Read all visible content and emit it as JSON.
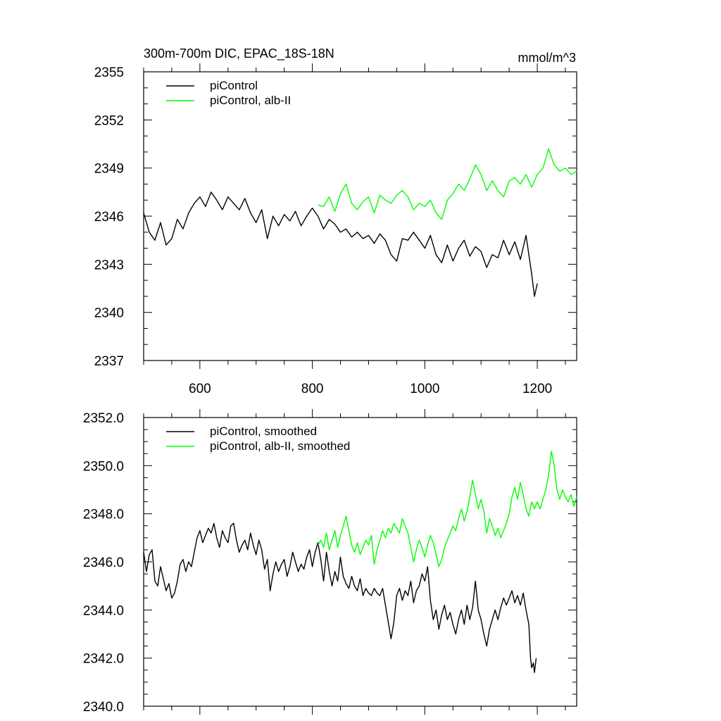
{
  "chart_data": [
    {
      "type": "line",
      "title": "300m-700m DIC, EPAC_18S-18N",
      "units": "mmol/m^3",
      "xlim": [
        500,
        1270
      ],
      "ylim": [
        2337,
        2355
      ],
      "x_ticks": [
        600,
        800,
        1000,
        1200
      ],
      "x_tick_labels": [
        "600",
        "800",
        "1000",
        "1200"
      ],
      "y_ticks": [
        2337,
        2340,
        2343,
        2346,
        2349,
        2352,
        2355
      ],
      "y_tick_labels": [
        "2337",
        "2340",
        "2343",
        "2346",
        "2349",
        "2352",
        "2355"
      ],
      "legend": "top-left",
      "grid": false,
      "series": [
        {
          "name": "piControl",
          "color": "#000000",
          "x": [
            500,
            510,
            520,
            530,
            540,
            550,
            560,
            570,
            580,
            590,
            600,
            610,
            620,
            630,
            640,
            650,
            660,
            670,
            680,
            690,
            700,
            710,
            720,
            730,
            740,
            750,
            760,
            770,
            780,
            790,
            800,
            810,
            820,
            830,
            840,
            850,
            860,
            870,
            880,
            890,
            900,
            910,
            920,
            930,
            940,
            950,
            960,
            970,
            980,
            990,
            1000,
            1010,
            1020,
            1030,
            1040,
            1050,
            1060,
            1070,
            1080,
            1090,
            1100,
            1110,
            1120,
            1130,
            1140,
            1150,
            1160,
            1170,
            1180,
            1190,
            1195,
            1200
          ],
          "y": [
            2346.2,
            2345.0,
            2344.5,
            2345.6,
            2344.2,
            2344.6,
            2345.8,
            2345.2,
            2346.2,
            2346.8,
            2347.2,
            2346.6,
            2347.5,
            2347.0,
            2346.4,
            2347.2,
            2346.8,
            2346.4,
            2347.1,
            2346.2,
            2345.6,
            2346.4,
            2344.6,
            2346.0,
            2345.4,
            2346.1,
            2345.7,
            2346.3,
            2345.4,
            2346.0,
            2346.5,
            2346.0,
            2345.2,
            2345.8,
            2345.5,
            2345.0,
            2345.2,
            2344.7,
            2345.0,
            2344.6,
            2344.8,
            2344.3,
            2344.9,
            2344.5,
            2343.6,
            2343.2,
            2344.6,
            2344.5,
            2345.0,
            2344.5,
            2344.0,
            2344.8,
            2343.6,
            2343.1,
            2344.2,
            2343.2,
            2344.0,
            2344.5,
            2343.5,
            2344.1,
            2343.8,
            2342.8,
            2343.6,
            2343.4,
            2344.5,
            2343.6,
            2344.4,
            2343.3,
            2344.8,
            2342.4,
            2341.0,
            2341.8
          ]
        },
        {
          "name": "piControl, alb-II",
          "color": "#00ff00",
          "x": [
            810,
            820,
            830,
            840,
            850,
            860,
            870,
            880,
            890,
            900,
            910,
            920,
            930,
            940,
            950,
            960,
            970,
            980,
            990,
            1000,
            1010,
            1020,
            1030,
            1040,
            1050,
            1060,
            1070,
            1080,
            1090,
            1100,
            1110,
            1120,
            1130,
            1140,
            1150,
            1160,
            1170,
            1180,
            1190,
            1200,
            1210,
            1220,
            1230,
            1240,
            1250,
            1260,
            1270
          ],
          "y": [
            2346.7,
            2346.6,
            2347.2,
            2346.3,
            2347.4,
            2348.0,
            2346.8,
            2346.4,
            2346.9,
            2347.2,
            2346.2,
            2347.3,
            2347.0,
            2346.8,
            2347.3,
            2347.6,
            2347.2,
            2346.4,
            2346.8,
            2346.6,
            2347.0,
            2346.2,
            2345.8,
            2347.0,
            2347.4,
            2348.0,
            2347.6,
            2348.3,
            2349.2,
            2348.6,
            2347.6,
            2348.2,
            2347.6,
            2347.2,
            2348.2,
            2348.4,
            2348.0,
            2348.6,
            2347.8,
            2348.6,
            2349.0,
            2350.2,
            2349.2,
            2348.8,
            2349.0,
            2348.6,
            2348.8
          ]
        }
      ]
    },
    {
      "type": "line",
      "xlim": [
        500,
        1270
      ],
      "ylim": [
        2340,
        2352
      ],
      "x_ticks": [
        600,
        800,
        1000,
        1200
      ],
      "y_ticks": [
        2340,
        2342,
        2344,
        2346,
        2348,
        2350,
        2352
      ],
      "y_tick_labels": [
        "2340.0",
        "2342.0",
        "2344.0",
        "2346.0",
        "2348.0",
        "2350.0",
        "2352.0"
      ],
      "legend": "top-left",
      "grid": false,
      "series": [
        {
          "name": "piControl, smoothed",
          "color": "#000000",
          "x": [
            500,
            505,
            510,
            515,
            520,
            525,
            530,
            535,
            540,
            545,
            550,
            555,
            560,
            565,
            570,
            575,
            580,
            585,
            590,
            595,
            600,
            605,
            610,
            615,
            620,
            625,
            630,
            635,
            640,
            645,
            650,
            655,
            660,
            665,
            670,
            675,
            680,
            685,
            690,
            695,
            700,
            705,
            710,
            715,
            720,
            725,
            730,
            735,
            740,
            745,
            750,
            755,
            760,
            765,
            770,
            775,
            780,
            785,
            790,
            795,
            800,
            805,
            810,
            815,
            820,
            825,
            830,
            835,
            840,
            845,
            850,
            855,
            860,
            865,
            870,
            875,
            880,
            885,
            890,
            895,
            900,
            905,
            910,
            915,
            920,
            925,
            930,
            935,
            940,
            945,
            950,
            955,
            960,
            965,
            970,
            975,
            980,
            985,
            990,
            995,
            1000,
            1005,
            1010,
            1015,
            1020,
            1025,
            1030,
            1035,
            1040,
            1045,
            1050,
            1055,
            1060,
            1065,
            1070,
            1075,
            1080,
            1085,
            1090,
            1095,
            1100,
            1105,
            1110,
            1115,
            1120,
            1125,
            1130,
            1135,
            1140,
            1145,
            1150,
            1155,
            1160,
            1165,
            1170,
            1175,
            1180,
            1185,
            1188,
            1190,
            1193,
            1195,
            1198
          ],
          "y": [
            2346.4,
            2345.6,
            2346.3,
            2346.5,
            2345.2,
            2345.0,
            2345.8,
            2345.3,
            2344.8,
            2345.1,
            2344.5,
            2344.7,
            2345.2,
            2345.9,
            2346.1,
            2345.6,
            2346.0,
            2345.8,
            2346.4,
            2347.0,
            2347.3,
            2346.8,
            2347.1,
            2347.4,
            2347.2,
            2347.6,
            2347.0,
            2346.6,
            2347.3,
            2347.0,
            2346.8,
            2347.5,
            2347.6,
            2346.9,
            2346.4,
            2346.7,
            2346.9,
            2346.5,
            2347.2,
            2346.7,
            2346.3,
            2346.9,
            2346.5,
            2345.7,
            2346.1,
            2344.8,
            2345.5,
            2346.0,
            2345.6,
            2345.9,
            2346.1,
            2345.4,
            2345.8,
            2346.4,
            2346.0,
            2345.6,
            2345.9,
            2345.7,
            2346.2,
            2346.5,
            2345.8,
            2346.4,
            2346.8,
            2346.1,
            2345.2,
            2346.4,
            2345.6,
            2345.0,
            2345.6,
            2345.2,
            2346.2,
            2345.4,
            2345.1,
            2344.9,
            2345.4,
            2345.0,
            2344.8,
            2345.3,
            2344.6,
            2344.9,
            2344.7,
            2344.6,
            2344.9,
            2344.7,
            2344.6,
            2344.9,
            2344.2,
            2343.5,
            2342.8,
            2343.5,
            2344.6,
            2344.9,
            2344.4,
            2344.8,
            2344.6,
            2345.2,
            2344.3,
            2344.8,
            2345.0,
            2345.5,
            2345.2,
            2345.8,
            2344.4,
            2343.6,
            2344.0,
            2343.2,
            2343.8,
            2344.2,
            2343.6,
            2343.9,
            2343.4,
            2343.0,
            2343.6,
            2344.0,
            2343.4,
            2344.2,
            2343.6,
            2344.1,
            2345.2,
            2344.0,
            2343.6,
            2343.0,
            2342.5,
            2343.2,
            2343.6,
            2344.0,
            2343.6,
            2344.1,
            2344.5,
            2344.2,
            2344.5,
            2344.8,
            2344.3,
            2344.6,
            2344.2,
            2344.7,
            2344.0,
            2343.4,
            2342.0,
            2341.6,
            2341.8,
            2341.4,
            2342.0
          ]
        },
        {
          "name": "piControl, alb-II, smoothed",
          "color": "#00ff00",
          "x": [
            810,
            815,
            820,
            825,
            830,
            835,
            840,
            845,
            850,
            855,
            860,
            865,
            870,
            875,
            880,
            885,
            890,
            895,
            900,
            905,
            910,
            915,
            920,
            925,
            930,
            935,
            940,
            945,
            950,
            955,
            960,
            965,
            970,
            975,
            980,
            985,
            990,
            995,
            1000,
            1005,
            1010,
            1015,
            1020,
            1025,
            1030,
            1035,
            1040,
            1045,
            1050,
            1055,
            1060,
            1065,
            1070,
            1075,
            1080,
            1085,
            1090,
            1095,
            1100,
            1105,
            1110,
            1115,
            1120,
            1125,
            1130,
            1135,
            1140,
            1145,
            1150,
            1155,
            1160,
            1165,
            1170,
            1175,
            1180,
            1185,
            1190,
            1195,
            1200,
            1205,
            1210,
            1215,
            1220,
            1225,
            1230,
            1235,
            1240,
            1245,
            1250,
            1255,
            1260,
            1265,
            1270
          ],
          "y": [
            2346.7,
            2346.9,
            2346.6,
            2347.2,
            2346.5,
            2346.9,
            2347.3,
            2346.6,
            2347.1,
            2347.5,
            2347.9,
            2347.3,
            2346.7,
            2346.4,
            2346.8,
            2346.3,
            2346.6,
            2346.9,
            2346.7,
            2347.1,
            2345.9,
            2346.5,
            2346.9,
            2347.3,
            2347.0,
            2347.4,
            2347.2,
            2347.6,
            2347.4,
            2347.2,
            2347.8,
            2347.5,
            2347.2,
            2346.6,
            2346.0,
            2346.5,
            2346.9,
            2346.6,
            2346.2,
            2346.7,
            2347.1,
            2346.8,
            2346.3,
            2345.8,
            2346.1,
            2346.6,
            2346.9,
            2347.2,
            2347.5,
            2347.3,
            2347.8,
            2348.2,
            2347.7,
            2348.1,
            2348.7,
            2349.4,
            2348.8,
            2348.2,
            2348.6,
            2348.1,
            2347.2,
            2347.8,
            2347.5,
            2347.1,
            2347.4,
            2347.0,
            2347.3,
            2347.6,
            2348.0,
            2348.7,
            2349.1,
            2348.6,
            2349.3,
            2348.8,
            2348.2,
            2347.9,
            2348.5,
            2348.2,
            2348.5,
            2348.2,
            2348.6,
            2349.0,
            2349.6,
            2350.6,
            2350.0,
            2349.0,
            2348.6,
            2349.0,
            2348.7,
            2348.5,
            2348.8,
            2348.3,
            2348.7
          ]
        }
      ]
    }
  ]
}
